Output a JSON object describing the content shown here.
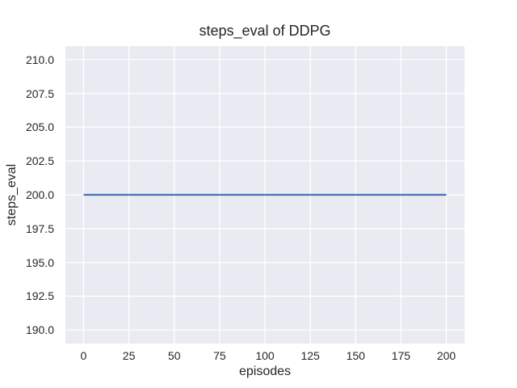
{
  "chart_data": {
    "type": "line",
    "title": "steps_eval of DDPG",
    "xlabel": "episodes",
    "ylabel": "steps_eval",
    "xlim": [
      -10,
      210
    ],
    "ylim": [
      189,
      211
    ],
    "grid": true,
    "legend": null,
    "x_tick_values": [
      0,
      25,
      50,
      75,
      100,
      125,
      150,
      175,
      200
    ],
    "x_tick_labels": [
      "0",
      "25",
      "50",
      "75",
      "100",
      "125",
      "150",
      "175",
      "200"
    ],
    "y_tick_values": [
      190.0,
      192.5,
      195.0,
      197.5,
      200.0,
      202.5,
      205.0,
      207.5,
      210.0
    ],
    "y_tick_labels": [
      "190.0",
      "192.5",
      "195.0",
      "197.5",
      "200.0",
      "202.5",
      "205.0",
      "207.5",
      "210.0"
    ],
    "series": [
      {
        "name": "steps_eval",
        "color": "#4c72b0",
        "x": [
          0,
          200
        ],
        "y": [
          200.0,
          200.0
        ]
      }
    ],
    "style": {
      "fig_bg": "#ffffff",
      "plot_bg": "#eaeaf2",
      "grid_color": "#ffffff",
      "text_color": "#262626",
      "line_width": 2.2,
      "grid_width": 1.3
    }
  }
}
